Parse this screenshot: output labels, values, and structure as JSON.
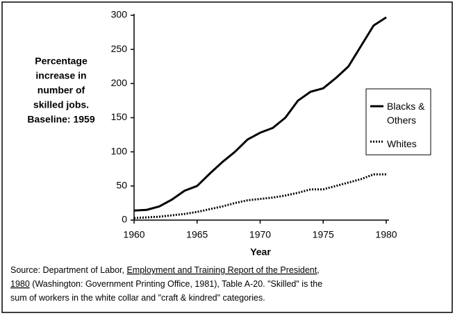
{
  "chart_data": {
    "type": "line",
    "ylabel": [
      "Percentage",
      "increase in",
      "number of",
      "skilled jobs.",
      "Baseline: 1959"
    ],
    "xlabel": "Year",
    "x": [
      1960,
      1961,
      1962,
      1963,
      1964,
      1965,
      1966,
      1967,
      1968,
      1969,
      1970,
      1971,
      1972,
      1973,
      1974,
      1975,
      1976,
      1977,
      1978,
      1979,
      1980
    ],
    "series": [
      {
        "name": "Blacks & Others",
        "color": "#000000",
        "style": "solid",
        "values": [
          14,
          15,
          20,
          30,
          43,
          50,
          68,
          85,
          100,
          118,
          128,
          135,
          150,
          175,
          188,
          193,
          208,
          225,
          255,
          285,
          297
        ]
      },
      {
        "name": "Whites",
        "color": "#000000",
        "style": "dotted",
        "values": [
          3,
          4,
          5,
          7,
          9,
          12,
          16,
          20,
          25,
          29,
          31,
          33,
          36,
          40,
          45,
          45,
          50,
          55,
          60,
          67,
          67
        ]
      }
    ],
    "xlim": [
      1960,
      1980
    ],
    "xticks": [
      1960,
      1965,
      1970,
      1975,
      1980
    ],
    "ylim": [
      0,
      300
    ],
    "yticks": [
      0,
      50,
      100,
      150,
      200,
      250,
      300
    ],
    "legend": "right",
    "source": [
      [
        {
          "text": "Source: Department of Labor, ",
          "underline": false
        },
        {
          "text": "Employment and Training Report of the President",
          "underline": true
        },
        {
          "text": ",",
          "underline": false
        }
      ],
      [
        {
          "text": "1980",
          "underline": true
        },
        {
          "text": " (Washington: Government Printing Office, 1981), Table A-20. \"Skilled\" is the",
          "underline": false
        }
      ],
      [
        {
          "text": "sum of workers in the white collar and \"craft & kindred\" categories.",
          "underline": false
        }
      ]
    ]
  }
}
